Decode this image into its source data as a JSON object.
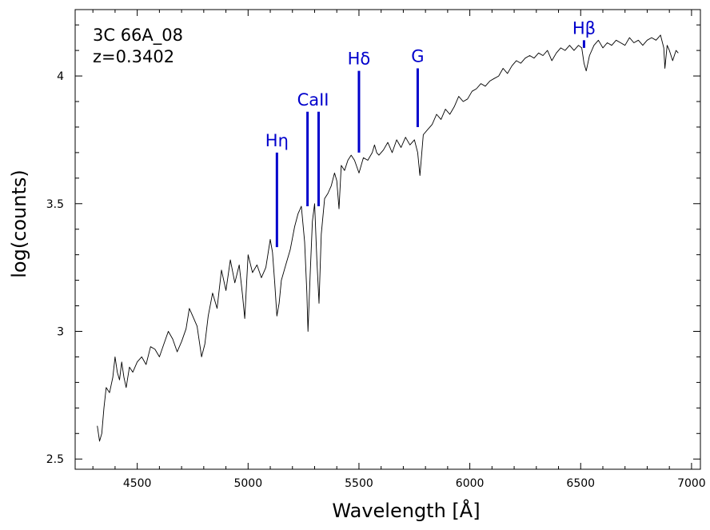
{
  "chart_data": {
    "type": "line",
    "title": "",
    "annotations": [
      "3C 66A_08",
      "z=0.3402"
    ],
    "xlabel": "Wavelength [Å]",
    "ylabel": "log(counts)",
    "xlim": [
      4220,
      7040
    ],
    "ylim": [
      2.46,
      4.26
    ],
    "x_ticks": [
      4500,
      5000,
      5500,
      6000,
      6500,
      7000
    ],
    "y_ticks": [
      2.5,
      3,
      3.5,
      4
    ],
    "y_tick_labels": [
      "2.5",
      "3",
      "3.5",
      "4"
    ],
    "grid": false,
    "line_color": "#000000",
    "marker_color": "#0000cc",
    "series": [
      {
        "x": [
          4320,
          4330,
          4340,
          4350,
          4360,
          4375,
          4390,
          4400,
          4410,
          4420,
          4430,
          4440,
          4450,
          4465,
          4480,
          4500,
          4520,
          4540,
          4560,
          4580,
          4600,
          4620,
          4640,
          4660,
          4680,
          4700,
          4720,
          4735,
          4750,
          4770,
          4790,
          4805,
          4820,
          4840,
          4860,
          4880,
          4900,
          4920,
          4940,
          4960,
          4975,
          4985,
          5000,
          5020,
          5040,
          5060,
          5080,
          5100,
          5110,
          5120,
          5130,
          5140,
          5150,
          5170,
          5190,
          5210,
          5225,
          5240,
          5255,
          5265,
          5270,
          5280,
          5290,
          5300,
          5310,
          5320,
          5330,
          5345,
          5360,
          5375,
          5390,
          5400,
          5410,
          5420,
          5435,
          5450,
          5465,
          5480,
          5500,
          5520,
          5540,
          5560,
          5570,
          5580,
          5590,
          5610,
          5630,
          5650,
          5670,
          5690,
          5710,
          5730,
          5750,
          5765,
          5775,
          5790,
          5810,
          5830,
          5850,
          5870,
          5890,
          5910,
          5930,
          5950,
          5970,
          5990,
          6010,
          6030,
          6050,
          6070,
          6090,
          6110,
          6130,
          6150,
          6170,
          6190,
          6210,
          6230,
          6250,
          6270,
          6290,
          6310,
          6330,
          6350,
          6370,
          6390,
          6410,
          6430,
          6450,
          6470,
          6490,
          6505,
          6515,
          6525,
          6540,
          6560,
          6580,
          6600,
          6620,
          6640,
          6660,
          6680,
          6700,
          6720,
          6740,
          6760,
          6780,
          6800,
          6820,
          6840,
          6860,
          6875,
          6880,
          6890,
          6900,
          6915,
          6930,
          6940
        ],
        "y": [
          2.63,
          2.57,
          2.6,
          2.7,
          2.78,
          2.76,
          2.82,
          2.9,
          2.84,
          2.81,
          2.88,
          2.82,
          2.78,
          2.86,
          2.84,
          2.88,
          2.9,
          2.87,
          2.94,
          2.93,
          2.9,
          2.95,
          3.0,
          2.97,
          2.92,
          2.96,
          3.01,
          3.09,
          3.06,
          3.02,
          2.9,
          2.95,
          3.06,
          3.15,
          3.09,
          3.24,
          3.16,
          3.28,
          3.19,
          3.26,
          3.14,
          3.05,
          3.3,
          3.23,
          3.26,
          3.21,
          3.25,
          3.36,
          3.31,
          3.19,
          3.06,
          3.11,
          3.2,
          3.26,
          3.32,
          3.41,
          3.46,
          3.49,
          3.35,
          3.15,
          3.0,
          3.22,
          3.43,
          3.5,
          3.28,
          3.11,
          3.38,
          3.52,
          3.54,
          3.57,
          3.62,
          3.59,
          3.48,
          3.65,
          3.63,
          3.67,
          3.69,
          3.67,
          3.62,
          3.68,
          3.67,
          3.7,
          3.73,
          3.7,
          3.69,
          3.71,
          3.74,
          3.7,
          3.75,
          3.72,
          3.76,
          3.73,
          3.75,
          3.7,
          3.61,
          3.77,
          3.79,
          3.81,
          3.85,
          3.83,
          3.87,
          3.85,
          3.88,
          3.92,
          3.9,
          3.91,
          3.94,
          3.95,
          3.97,
          3.96,
          3.98,
          3.99,
          4.0,
          4.03,
          4.01,
          4.04,
          4.06,
          4.05,
          4.07,
          4.08,
          4.07,
          4.09,
          4.08,
          4.1,
          4.06,
          4.09,
          4.11,
          4.1,
          4.12,
          4.1,
          4.12,
          4.11,
          4.05,
          4.02,
          4.08,
          4.12,
          4.14,
          4.11,
          4.13,
          4.12,
          4.14,
          4.13,
          4.12,
          4.15,
          4.13,
          4.14,
          4.12,
          4.14,
          4.15,
          4.14,
          4.16,
          4.11,
          4.03,
          4.12,
          4.1,
          4.06,
          4.1,
          4.09
        ]
      }
    ],
    "line_markers": [
      {
        "label": "Hη",
        "x": 5130,
        "y_bottom": 3.33,
        "y_top": 3.7
      },
      {
        "label": "CaII",
        "x": 5268,
        "y_bottom": 3.49,
        "y_top": 3.86
      },
      {
        "label": "",
        "x": 5318,
        "y_bottom": 3.49,
        "y_top": 3.86
      },
      {
        "label": "Hδ",
        "x": 5500,
        "y_bottom": 3.7,
        "y_top": 4.02
      },
      {
        "label": "G",
        "x": 5765,
        "y_bottom": 3.8,
        "y_top": 4.03
      },
      {
        "label": "Hβ",
        "x": 6515,
        "y_bottom": 4.11,
        "y_top": 4.14
      }
    ]
  }
}
